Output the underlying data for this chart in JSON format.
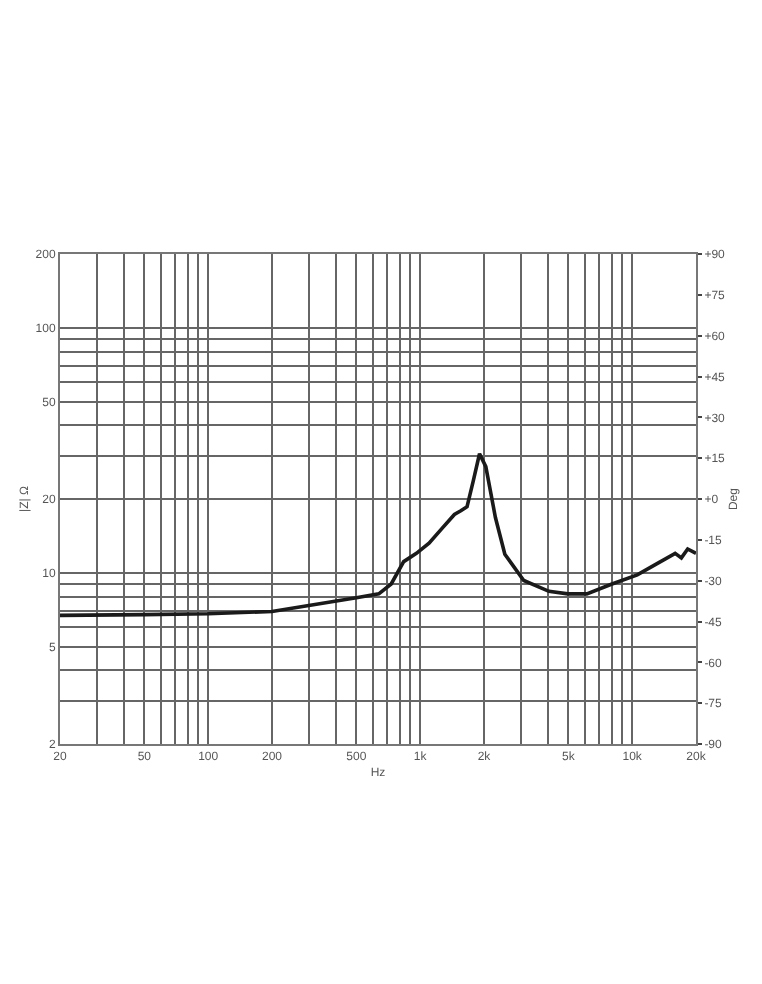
{
  "chart_data": {
    "type": "line",
    "xlabel": "Hz",
    "ylabel": "|Z| Ω",
    "y2label": "Deg",
    "log": "xy",
    "grid": true,
    "marker": "none",
    "line_style": "solid",
    "x": [
      20,
      50,
      100,
      200,
      500,
      638,
      730,
      836,
      960,
      1101,
      1262,
      1450,
      1555,
      1664,
      1778,
      1905,
      2040,
      2264,
      2508,
      3080,
      4050,
      4970,
      6110,
      8030,
      10570,
      13100,
      15950,
      17060,
      18270,
      20000
    ],
    "series": [
      {
        "color": "#1a1a1a",
        "values": [
          6.7,
          6.75,
          6.8,
          6.95,
          7.9,
          8.2,
          9.0,
          11.1,
          12.0,
          13.2,
          15.1,
          17.3,
          17.9,
          18.6,
          23.6,
          30.6,
          27.1,
          16.8,
          11.9,
          9.3,
          8.4,
          8.2,
          8.2,
          9.0,
          9.8,
          10.9,
          12.0,
          11.5,
          12.5,
          12.0
        ]
      }
    ],
    "xlim": [
      20,
      20000
    ],
    "ylim": [
      2,
      200
    ],
    "y2lim": [
      -90,
      90
    ],
    "xticks": [
      20,
      {
        "value": 30,
        "label": null
      },
      {
        "value": 40,
        "label": null
      },
      50,
      {
        "value": 60,
        "label": null
      },
      {
        "value": 70,
        "label": null
      },
      {
        "value": 80,
        "label": null
      },
      {
        "value": 90,
        "label": null
      },
      100,
      200,
      {
        "value": 300,
        "label": null
      },
      {
        "value": 400,
        "label": null
      },
      500,
      {
        "value": 600,
        "label": null
      },
      {
        "value": 700,
        "label": null
      },
      {
        "value": 800,
        "label": null
      },
      {
        "value": 900,
        "label": null
      },
      {
        "value": 1000,
        "label": "1k"
      },
      {
        "value": 2000,
        "label": "2k"
      },
      {
        "value": 3000,
        "label": null
      },
      {
        "value": 4000,
        "label": null
      },
      {
        "value": 5000,
        "label": "5k"
      },
      {
        "value": 6000,
        "label": null
      },
      {
        "value": 7000,
        "label": null
      },
      {
        "value": 8000,
        "label": null
      },
      {
        "value": 9000,
        "label": null
      },
      {
        "value": 10000,
        "label": "10k"
      },
      {
        "value": 20000,
        "label": "20k"
      }
    ],
    "yticks": [
      2,
      {
        "value": 3,
        "label": null
      },
      {
        "value": 4,
        "label": null
      },
      5,
      {
        "value": 6,
        "label": null
      },
      {
        "value": 7,
        "label": null
      },
      {
        "value": 8,
        "label": null
      },
      {
        "value": 9,
        "label": null
      },
      10,
      20,
      {
        "value": 30,
        "label": null
      },
      {
        "value": 40,
        "label": null
      },
      50,
      {
        "value": 60,
        "label": null
      },
      {
        "value": 70,
        "label": null
      },
      {
        "value": 80,
        "label": null
      },
      {
        "value": 90,
        "label": null
      },
      100,
      200
    ],
    "y2ticks": [
      {
        "value": -90,
        "label": "-90"
      },
      {
        "value": -75,
        "label": "-75"
      },
      {
        "value": -60,
        "label": "-60"
      },
      {
        "value": -45,
        "label": "-45"
      },
      {
        "value": -30,
        "label": "-30"
      },
      {
        "value": -15,
        "label": "-15"
      },
      {
        "value": 0,
        "label": "+0"
      },
      {
        "value": 15,
        "label": "+15"
      },
      {
        "value": 30,
        "label": "+30"
      },
      {
        "value": 45,
        "label": "+45"
      },
      {
        "value": 60,
        "label": "+60"
      },
      {
        "value": 75,
        "label": "+75"
      },
      {
        "value": 90,
        "label": "+90"
      }
    ]
  }
}
